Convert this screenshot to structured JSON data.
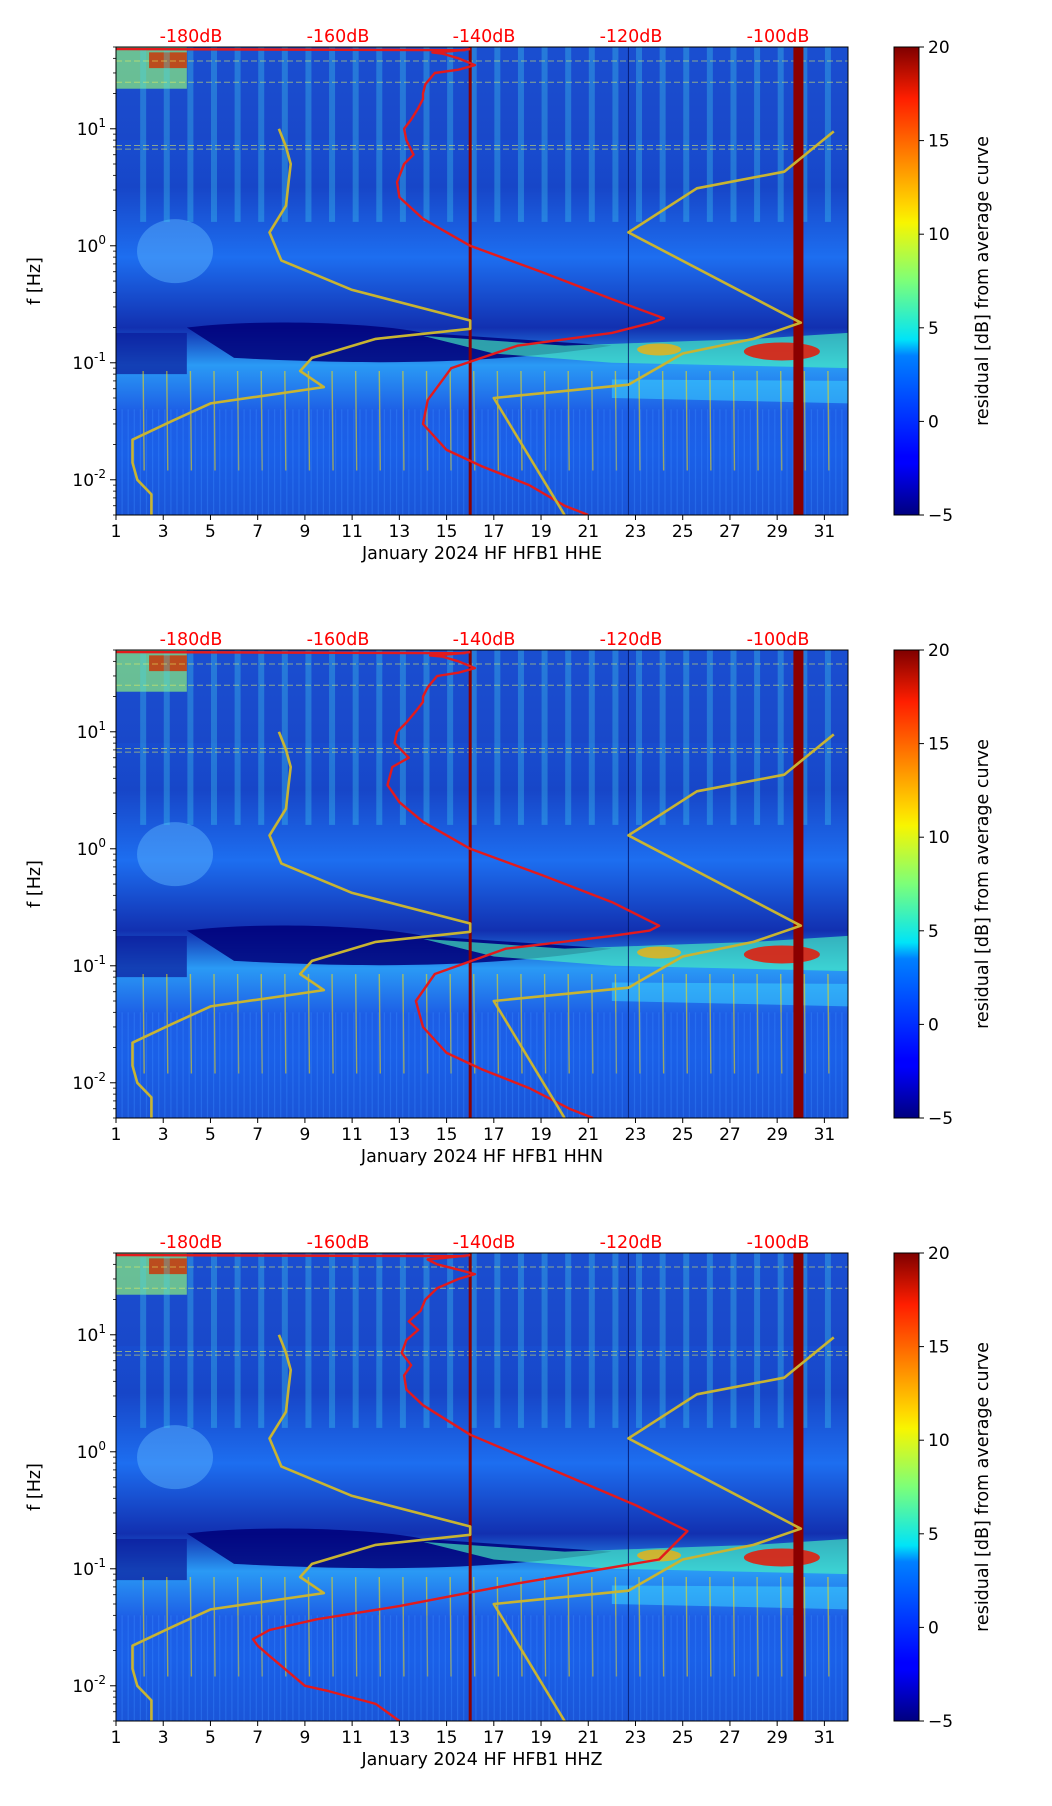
{
  "chart_data": [
    {
      "type": "heatmap",
      "title": "",
      "xlabel": "January 2024 HF HFB1  HHE",
      "ylabel": "f [Hz]",
      "x_ticks": [
        "1",
        "3",
        "5",
        "7",
        "9",
        "11",
        "13",
        "15",
        "17",
        "19",
        "21",
        "23",
        "25",
        "27",
        "29",
        "31"
      ],
      "x_range": [
        1,
        32
      ],
      "y_range": [
        0.005,
        50
      ],
      "y_scale": "log",
      "y_ticks": [
        {
          "exp": "-2",
          "value": 0.01
        },
        {
          "exp": "-1",
          "value": 0.1
        },
        {
          "exp": "0",
          "value": 1
        },
        {
          "exp": "1",
          "value": 10
        }
      ],
      "top_axis_labels": [
        "-180dB",
        "-160dB",
        "-140dB",
        "-120dB",
        "-100dB"
      ],
      "colorbar": {
        "label": "residual [dB] from average curve",
        "min": -5,
        "max": 20,
        "ticks": [
          "−5",
          "0",
          "5",
          "10",
          "15",
          "20"
        ]
      },
      "series": [
        {
          "name": "average PSD curve (red)",
          "color": "#e31a1c",
          "x": [
            21,
            20,
            18.5,
            16.5,
            15,
            14,
            14.2,
            15.2,
            18,
            22,
            23.7,
            24.2,
            22,
            19,
            16,
            14,
            13,
            12.9,
            13.2,
            13.6,
            13.3,
            13.2,
            13.5,
            13.8,
            14,
            14,
            14.1,
            14.5,
            15.5,
            16.2,
            15.5,
            14.8,
            14.4,
            15.2,
            16
          ],
          "y": [
            0.005,
            0.006,
            0.009,
            0.013,
            0.018,
            0.03,
            0.048,
            0.09,
            0.14,
            0.18,
            0.22,
            0.24,
            0.35,
            0.6,
            1,
            1.7,
            2.6,
            3.5,
            5,
            6,
            8,
            10,
            12,
            15,
            18,
            20,
            24,
            30,
            32,
            35,
            40,
            44,
            45,
            46,
            48
          ]
        },
        {
          "name": "NHNM / NLNM reference (gold)",
          "color": "#c8b432",
          "x": [
            2.5,
            2.5,
            1.9,
            1.7,
            1.7,
            3.4,
            5,
            9.8,
            8.8,
            9.3,
            12,
            16,
            16,
            11,
            8,
            7.5,
            8.2,
            8.3,
            8.4,
            8.2,
            7.9
          ],
          "y": [
            0.005,
            0.0075,
            0.01,
            0.014,
            0.022,
            0.032,
            0.045,
            0.062,
            0.085,
            0.11,
            0.16,
            0.195,
            0.23,
            0.42,
            0.75,
            1.3,
            2.2,
            3.4,
            5,
            7,
            10
          ]
        },
        {
          "name": "NHNM / NLNM reference (gold, right)",
          "color": "#c8b432",
          "x": [
            20,
            17,
            22.7,
            25,
            28,
            30,
            22.7,
            25.6,
            29.3,
            31.4
          ],
          "y": [
            0.005,
            0.05,
            0.065,
            0.12,
            0.16,
            0.22,
            1.3,
            3.1,
            4.3,
            9.5
          ]
        }
      ],
      "reference_lines": [
        {
          "x": 16.0,
          "color": "#8b0000",
          "width": "thin"
        },
        {
          "x": 29.9,
          "color": "#8b0000",
          "width": "thick"
        }
      ]
    },
    {
      "type": "heatmap",
      "title": "",
      "xlabel": "January 2024 HF HFB1  HHN",
      "ylabel": "f [Hz]",
      "x_ticks": [
        "1",
        "3",
        "5",
        "7",
        "9",
        "11",
        "13",
        "15",
        "17",
        "19",
        "21",
        "23",
        "25",
        "27",
        "29",
        "31"
      ],
      "x_range": [
        1,
        32
      ],
      "y_range": [
        0.005,
        50
      ],
      "y_scale": "log",
      "y_ticks": [
        {
          "exp": "-2",
          "value": 0.01
        },
        {
          "exp": "-1",
          "value": 0.1
        },
        {
          "exp": "0",
          "value": 1
        },
        {
          "exp": "1",
          "value": 10
        }
      ],
      "top_axis_labels": [
        "-180dB",
        "-160dB",
        "-140dB",
        "-120dB",
        "-100dB"
      ],
      "colorbar": {
        "label": "residual [dB] from average curve",
        "min": -5,
        "max": 20,
        "ticks": [
          "−5",
          "0",
          "5",
          "10",
          "15",
          "20"
        ]
      },
      "series": [
        {
          "name": "average PSD curve (red)",
          "color": "#e31a1c",
          "x": [
            21.2,
            20.2,
            18.5,
            16.5,
            15,
            14,
            13.7,
            14.5,
            17.5,
            22,
            23.6,
            24,
            22,
            19,
            16,
            14,
            13,
            12.5,
            12.7,
            13.4,
            12.8,
            12.9,
            13.3,
            13.7,
            14,
            14,
            14.2,
            14.6,
            15.5,
            16.2,
            15.5,
            14.8,
            14.3,
            15.2,
            16
          ],
          "y": [
            0.005,
            0.006,
            0.009,
            0.013,
            0.018,
            0.03,
            0.05,
            0.085,
            0.14,
            0.18,
            0.2,
            0.22,
            0.35,
            0.6,
            1,
            1.7,
            2.5,
            3.5,
            5,
            6,
            8,
            10,
            12,
            15,
            18,
            20,
            24,
            30,
            32,
            35,
            40,
            44,
            45,
            46,
            48
          ]
        },
        {
          "name": "NHNM / NLNM reference (gold)",
          "color": "#c8b432",
          "x": [
            2.5,
            2.5,
            1.9,
            1.7,
            1.7,
            3.4,
            5,
            9.8,
            8.8,
            9.3,
            12,
            16,
            16,
            11,
            8,
            7.5,
            8.2,
            8.3,
            8.4,
            8.2,
            7.9
          ],
          "y": [
            0.005,
            0.0075,
            0.01,
            0.014,
            0.022,
            0.032,
            0.045,
            0.062,
            0.085,
            0.11,
            0.16,
            0.195,
            0.23,
            0.42,
            0.75,
            1.3,
            2.2,
            3.4,
            5,
            7,
            10
          ]
        },
        {
          "name": "NHNM / NLNM reference (gold, right)",
          "color": "#c8b432",
          "x": [
            20,
            17,
            22.7,
            25,
            28,
            30,
            22.7,
            25.6,
            29.3,
            31.4
          ],
          "y": [
            0.005,
            0.05,
            0.065,
            0.12,
            0.16,
            0.22,
            1.3,
            3.1,
            4.3,
            9.5
          ]
        }
      ],
      "reference_lines": [
        {
          "x": 16.0,
          "color": "#8b0000",
          "width": "thin"
        },
        {
          "x": 29.9,
          "color": "#8b0000",
          "width": "thick"
        }
      ]
    },
    {
      "type": "heatmap",
      "title": "",
      "xlabel": "January 2024 HF HFB1  HHZ",
      "ylabel": "f [Hz]",
      "x_ticks": [
        "1",
        "3",
        "5",
        "7",
        "9",
        "11",
        "13",
        "15",
        "17",
        "19",
        "21",
        "23",
        "25",
        "27",
        "29",
        "31"
      ],
      "x_range": [
        1,
        32
      ],
      "y_range": [
        0.005,
        50
      ],
      "y_scale": "log",
      "y_ticks": [
        {
          "exp": "-2",
          "value": 0.01
        },
        {
          "exp": "-1",
          "value": 0.1
        },
        {
          "exp": "0",
          "value": 1
        },
        {
          "exp": "1",
          "value": 10
        }
      ],
      "top_axis_labels": [
        "-180dB",
        "-160dB",
        "-140dB",
        "-120dB",
        "-100dB"
      ],
      "colorbar": {
        "label": "residual [dB] from average curve",
        "min": -5,
        "max": 20,
        "ticks": [
          "−5",
          "0",
          "5",
          "10",
          "15",
          "20"
        ]
      },
      "series": [
        {
          "name": "average PSD curve (red)",
          "color": "#e31a1c",
          "x": [
            13,
            12,
            10,
            9,
            7.5,
            7,
            6.8,
            7.5,
            9.5,
            13,
            18,
            24,
            25.2,
            23,
            19.5,
            16,
            14,
            13.3,
            13.2,
            13.5,
            13.1,
            13.3,
            13.8,
            13.4,
            13.9,
            14.1,
            14.6,
            15.5,
            16.2,
            15.5,
            14.6,
            14.2,
            15.2,
            16
          ],
          "y": [
            0.005,
            0.007,
            0.009,
            0.01,
            0.018,
            0.022,
            0.025,
            0.03,
            0.037,
            0.048,
            0.075,
            0.12,
            0.21,
            0.35,
            0.7,
            1.4,
            2.5,
            3.4,
            4.5,
            5.5,
            7,
            9,
            11,
            13,
            16,
            20,
            25,
            30,
            33,
            36,
            40,
            44,
            46,
            48
          ]
        },
        {
          "name": "NHNM / NLNM reference (gold)",
          "color": "#c8b432",
          "x": [
            2.5,
            2.5,
            1.9,
            1.7,
            1.7,
            3.4,
            5,
            9.8,
            8.8,
            9.3,
            12,
            16,
            16,
            11,
            8,
            7.5,
            8.2,
            8.3,
            8.4,
            8.2,
            7.9
          ],
          "y": [
            0.005,
            0.0075,
            0.01,
            0.014,
            0.022,
            0.032,
            0.045,
            0.062,
            0.085,
            0.11,
            0.16,
            0.195,
            0.23,
            0.42,
            0.75,
            1.3,
            2.2,
            3.4,
            5,
            7,
            10
          ]
        },
        {
          "name": "NHNM / NLNM reference (gold, right)",
          "color": "#c8b432",
          "x": [
            20,
            17,
            22.7,
            25,
            28,
            30,
            22.7,
            25.6,
            29.3,
            31.4
          ],
          "y": [
            0.005,
            0.05,
            0.065,
            0.12,
            0.16,
            0.22,
            1.3,
            3.1,
            4.3,
            9.5
          ]
        }
      ],
      "reference_lines": [
        {
          "x": 16.0,
          "color": "#8b0000",
          "width": "thin"
        },
        {
          "x": 29.9,
          "color": "#8b0000",
          "width": "thick"
        }
      ]
    }
  ]
}
